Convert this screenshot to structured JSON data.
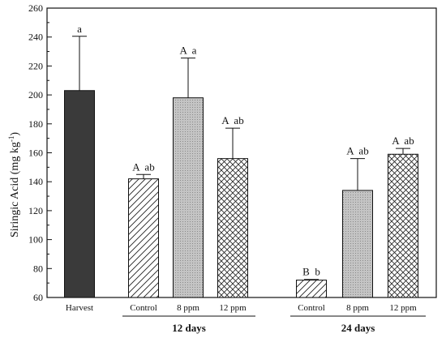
{
  "chart_data": {
    "type": "bar",
    "ylabel": "Siringic Acid (mg kg",
    "ylabel_sup": "-1",
    "ylabel_close": ")",
    "ylim": [
      60,
      260
    ],
    "yticks": [
      60,
      80,
      100,
      120,
      140,
      160,
      180,
      200,
      220,
      240,
      260
    ],
    "groups": [
      "12 days",
      "24 days"
    ],
    "bars": [
      {
        "category": "Harvest",
        "value": 203,
        "error": 37.5,
        "pattern": "dark",
        "label": "a",
        "group": null
      },
      {
        "category": "Control",
        "value": 142,
        "error": 3,
        "pattern": "diagonal",
        "label": "A  ab",
        "group": "12 days"
      },
      {
        "category": "8 ppm",
        "value": 198,
        "error": 27.5,
        "pattern": "dotted",
        "label": "A  a",
        "group": "12 days"
      },
      {
        "category": "12 ppm",
        "value": 156,
        "error": 21,
        "pattern": "crosshatch",
        "label": "A  ab",
        "group": "12 days"
      },
      {
        "category": "Control",
        "value": 72,
        "error": 0.5,
        "pattern": "diagonal",
        "label": "B  b",
        "group": "24 days"
      },
      {
        "category": "8 ppm",
        "value": 134,
        "error": 22,
        "pattern": "dotted",
        "label": "A  ab",
        "group": "24 days"
      },
      {
        "category": "12 ppm",
        "value": 159,
        "error": 4,
        "pattern": "crosshatch",
        "label": "A  ab",
        "group": "24 days"
      }
    ],
    "colors": {
      "dark": "#3a3a3a",
      "dotted": "#bdbdbd",
      "axis": "#111111"
    }
  }
}
